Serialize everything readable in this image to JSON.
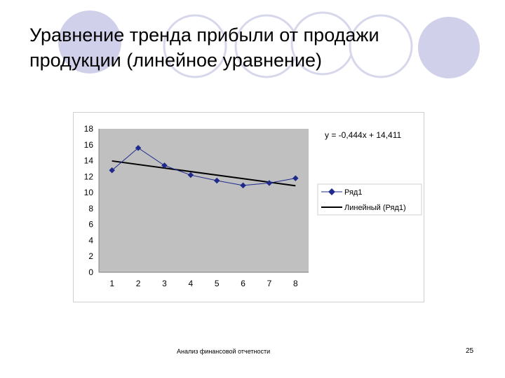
{
  "slide": {
    "title": "Уравнение тренда прибыли от продажи продукции (линейное уравнение)",
    "footer": "Анализ финансовой отчетности",
    "page_number": "25"
  },
  "colors": {
    "circle_fill": "#d0d0ea",
    "circle_ring": "#d7d7ec",
    "plot_bg": "#c0c0c0",
    "series_line": "#1f2a8c",
    "trend_line": "#000000"
  },
  "chart_data": {
    "type": "line",
    "x": [
      1,
      2,
      3,
      4,
      5,
      6,
      7,
      8
    ],
    "series": [
      {
        "name": "Ряд1",
        "values": [
          12.8,
          15.6,
          13.4,
          12.2,
          11.5,
          10.9,
          11.2,
          11.8
        ]
      }
    ],
    "trendline": {
      "name": "Линейный (Ряд1)",
      "slope": -0.444,
      "intercept": 14.411
    },
    "equation": "y = -0,444x + 14,411",
    "ylim": [
      0,
      18
    ],
    "yticks": [
      "0",
      "2",
      "4",
      "6",
      "8",
      "10",
      "12",
      "14",
      "16",
      "18"
    ],
    "xticks": [
      "1",
      "2",
      "3",
      "4",
      "5",
      "6",
      "7",
      "8"
    ],
    "grid": false,
    "legend_position": "right",
    "legend": [
      "Ряд1",
      "Линейный (Ряд1)"
    ]
  }
}
